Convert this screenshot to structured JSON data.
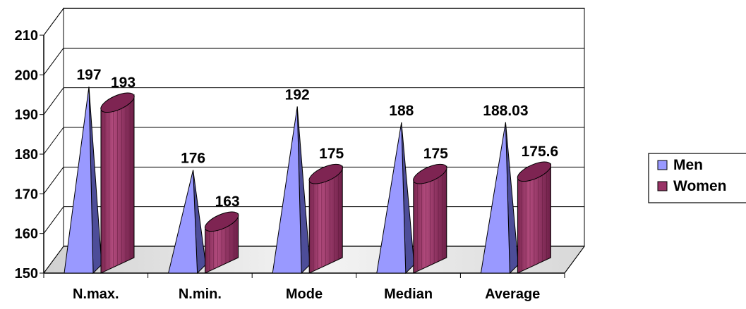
{
  "chart_data": {
    "type": "bar",
    "categories": [
      "N.max.",
      "N.min.",
      "Mode",
      "Median",
      "Average"
    ],
    "series": [
      {
        "name": "Men",
        "values": [
          197,
          176,
          192,
          188,
          188.03
        ],
        "labels": [
          "197",
          "176",
          "192",
          "188",
          "188.03"
        ],
        "color": "#9999ff",
        "shape": "pyramid"
      },
      {
        "name": "Women",
        "values": [
          193,
          163,
          175,
          175,
          175.6
        ],
        "labels": [
          "193",
          "163",
          "175",
          "175",
          "175.6"
        ],
        "color": "#993366",
        "shape": "cylinder"
      }
    ],
    "ylim": [
      150,
      210
    ],
    "yticks": [
      "150",
      "160",
      "170",
      "180",
      "190",
      "200",
      "210"
    ],
    "grid": true,
    "legend": "right",
    "three_d": true,
    "xlabel": "",
    "ylabel": "",
    "title": ""
  }
}
